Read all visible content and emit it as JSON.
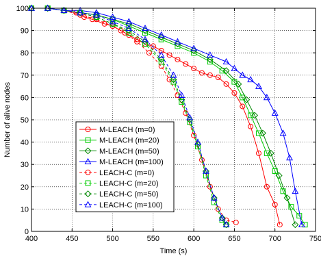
{
  "chart_data": {
    "type": "line",
    "xlabel": "Time (s)",
    "ylabel": "Number of alive nodes",
    "xlim": [
      400,
      750
    ],
    "ylim": [
      0,
      100
    ],
    "xticks": [
      400,
      450,
      500,
      550,
      600,
      650,
      700,
      750
    ],
    "yticks": [
      0,
      10,
      20,
      30,
      40,
      50,
      60,
      70,
      80,
      90,
      100
    ],
    "grid": true,
    "legend_position": "lower-left",
    "series": [
      {
        "name": "M-LEACH (m=0)",
        "color": "#ff0000",
        "marker": "circle",
        "linestyle": "solid",
        "x": [
          400,
          420,
          440,
          455,
          465,
          475,
          490,
          500,
          510,
          520,
          530,
          540,
          550,
          560,
          570,
          580,
          590,
          600,
          610,
          620,
          630,
          640,
          650,
          660,
          670,
          680,
          690,
          700,
          706
        ],
        "y": [
          100,
          100,
          99,
          98,
          96,
          95,
          93,
          92,
          90,
          88,
          86,
          84,
          83,
          81,
          79,
          77,
          75,
          73,
          71,
          70,
          69,
          66,
          62,
          56,
          47,
          35,
          20,
          12,
          3
        ]
      },
      {
        "name": "M-LEACH (m=20)",
        "color": "#00cc00",
        "marker": "square",
        "linestyle": "solid",
        "x": [
          400,
          420,
          440,
          460,
          480,
          500,
          520,
          540,
          560,
          580,
          600,
          620,
          635,
          650,
          660,
          670,
          680,
          690,
          700,
          710,
          720,
          730,
          737
        ],
        "y": [
          100,
          100,
          99,
          98,
          97,
          95,
          92,
          89,
          86,
          83,
          80,
          76,
          72,
          67,
          60,
          52,
          44,
          35,
          27,
          18,
          11,
          7,
          3
        ]
      },
      {
        "name": "M-LEACH (m=50)",
        "color": "#008800",
        "marker": "diamond",
        "linestyle": "solid",
        "x": [
          400,
          420,
          440,
          460,
          480,
          500,
          520,
          540,
          560,
          580,
          600,
          620,
          640,
          655,
          665,
          675,
          685,
          695,
          705,
          715,
          725
        ],
        "y": [
          100,
          100,
          99,
          98,
          97,
          95,
          93,
          90,
          87,
          84,
          81,
          77,
          72,
          66,
          59,
          52,
          44,
          35,
          25,
          15,
          3
        ]
      },
      {
        "name": "M-LEACH (m=100)",
        "color": "#0000ff",
        "marker": "triangle",
        "linestyle": "solid",
        "x": [
          400,
          420,
          440,
          460,
          480,
          500,
          520,
          540,
          560,
          580,
          600,
          620,
          640,
          650,
          660,
          670,
          680,
          690,
          700,
          710,
          718,
          725,
          733
        ],
        "y": [
          100,
          100,
          99,
          99,
          98,
          96,
          94,
          91,
          88,
          85,
          82,
          79,
          76,
          73,
          70,
          68,
          65,
          60,
          53,
          44,
          33,
          18,
          3
        ]
      },
      {
        "name": "LEACH-C (m=0)",
        "color": "#ff0000",
        "marker": "circle",
        "linestyle": "dashed",
        "x": [
          400,
          420,
          440,
          460,
          480,
          500,
          515,
          530,
          545,
          560,
          570,
          580,
          590,
          600,
          610,
          620,
          630,
          640,
          652
        ],
        "y": [
          100,
          100,
          99,
          97,
          95,
          92,
          89,
          85,
          80,
          74,
          68,
          61,
          53,
          43,
          32,
          20,
          10,
          5,
          4
        ]
      },
      {
        "name": "LEACH-C (m=20)",
        "color": "#00cc00",
        "marker": "square",
        "linestyle": "dashed",
        "x": [
          400,
          420,
          440,
          460,
          480,
          500,
          520,
          540,
          560,
          575,
          585,
          595,
          605,
          615,
          625,
          635,
          640
        ],
        "y": [
          100,
          100,
          99,
          98,
          96,
          93,
          89,
          84,
          76,
          67,
          58,
          49,
          38,
          25,
          13,
          5,
          3
        ]
      },
      {
        "name": "LEACH-C (m=50)",
        "color": "#008800",
        "marker": "diamond",
        "linestyle": "dashed",
        "x": [
          400,
          420,
          440,
          460,
          480,
          500,
          520,
          540,
          560,
          575,
          585,
          595,
          605,
          615,
          625,
          635,
          640
        ],
        "y": [
          100,
          100,
          99,
          98,
          96,
          93,
          90,
          85,
          77,
          68,
          59,
          50,
          39,
          27,
          15,
          6,
          3
        ]
      },
      {
        "name": "LEACH-C (m=100)",
        "color": "#0000ff",
        "marker": "triangle",
        "linestyle": "dashed",
        "x": [
          400,
          420,
          440,
          460,
          480,
          500,
          520,
          540,
          560,
          575,
          585,
          595,
          605,
          615,
          625,
          635,
          640
        ],
        "y": [
          100,
          100,
          99,
          98,
          97,
          94,
          91,
          86,
          79,
          70,
          61,
          51,
          40,
          27,
          15,
          6,
          3
        ]
      }
    ]
  }
}
